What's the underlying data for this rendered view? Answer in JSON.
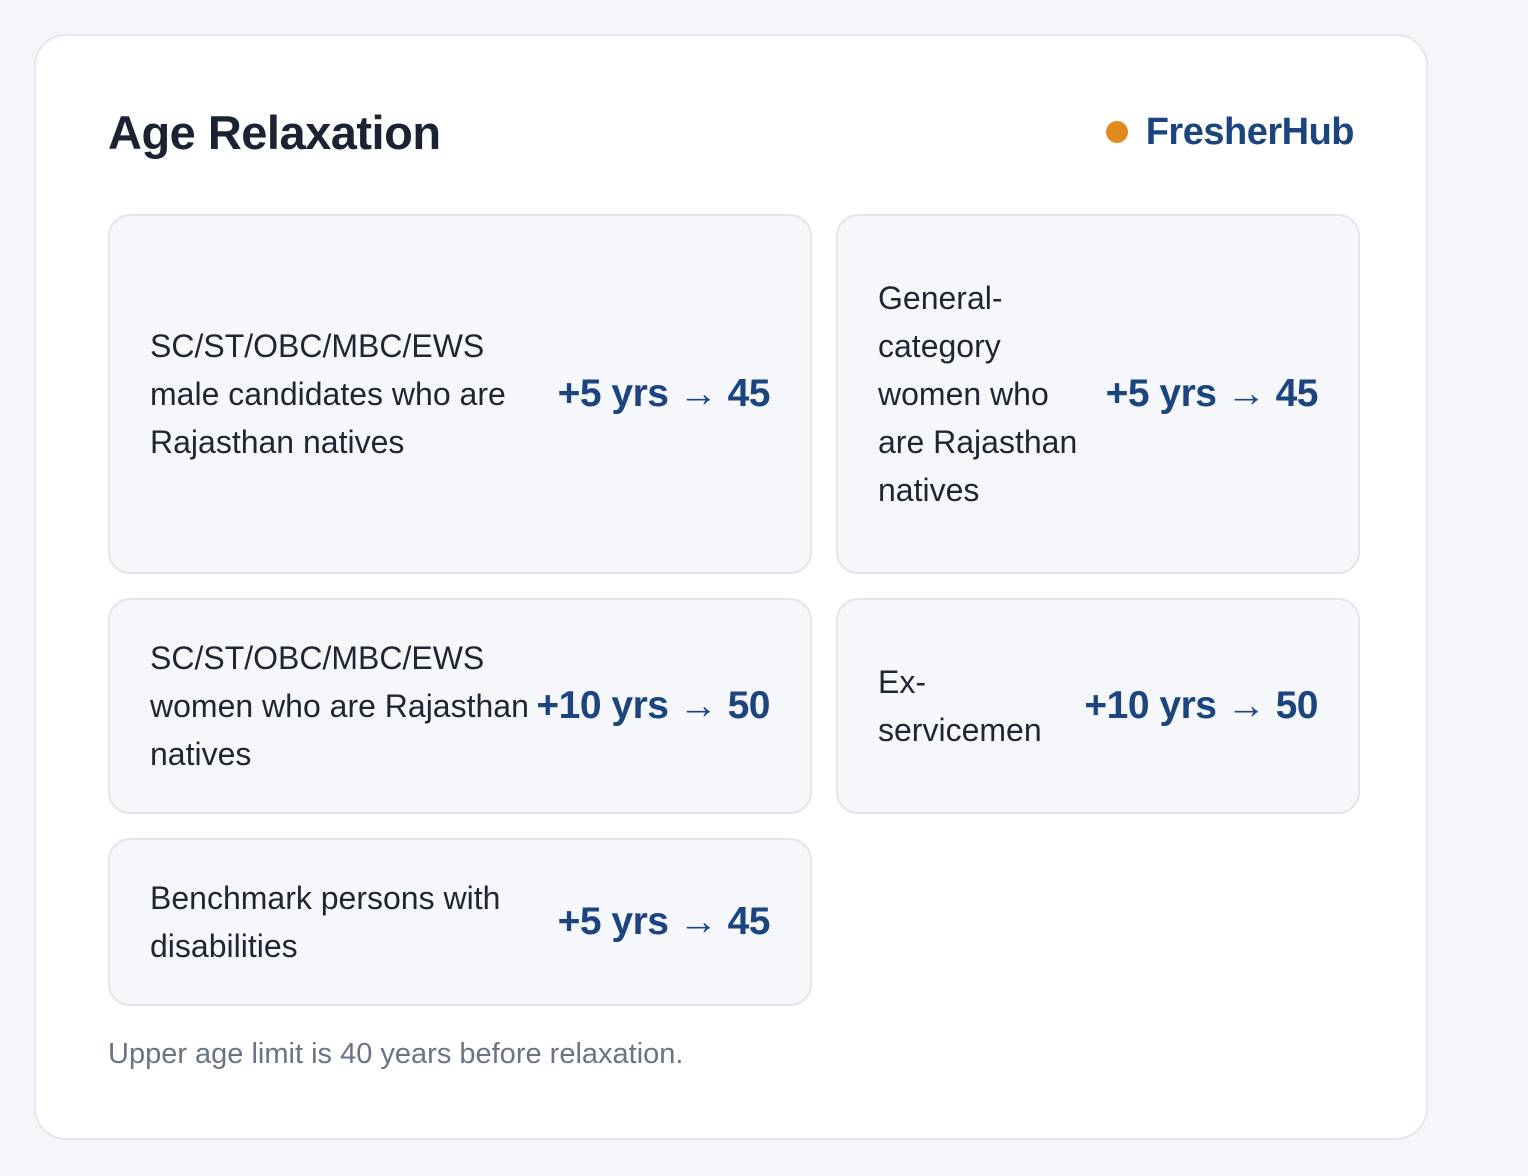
{
  "card": {
    "title": "Age Relaxation",
    "brand": {
      "name": "FresherHub",
      "dot_color": "#e08a1e",
      "color": "#1c4580"
    },
    "items": [
      {
        "label": "SC/ST/OBC/MBC/EWS male candidates who are Rajasthan natives",
        "value": "+5 yrs → 45"
      },
      {
        "label": "General-category women who are Rajasthan natives",
        "value": "+5 yrs → 45"
      },
      {
        "label": "SC/ST/OBC/MBC/EWS women who are Rajasthan natives",
        "value": "+10 yrs → 50"
      },
      {
        "label": "Ex-servicemen",
        "value": "+10 yrs → 50"
      },
      {
        "label": "Benchmark persons with disabilities",
        "value": "+5 yrs → 45"
      }
    ],
    "footnote": "Upper age limit is 40 years before relaxation."
  }
}
